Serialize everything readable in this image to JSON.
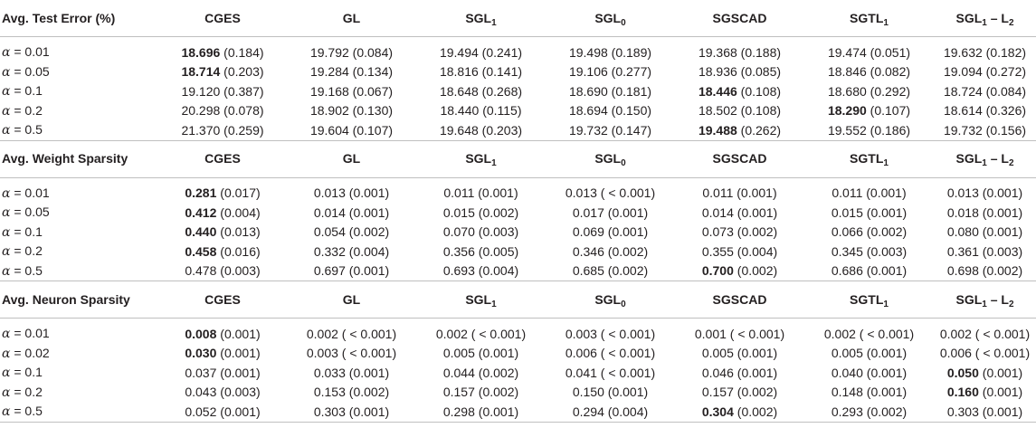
{
  "alpha_symbol": "α",
  "sections": [
    {
      "title": "Avg. Test Error (%)",
      "rows": [
        {
          "alpha": "= 0.01",
          "cells": [
            {
              "v": "18.696",
              "sd": "(0.184)",
              "bold": true
            },
            {
              "v": "19.792",
              "sd": "(0.084)"
            },
            {
              "v": "19.494",
              "sd": "(0.241)"
            },
            {
              "v": "19.498",
              "sd": "(0.189)"
            },
            {
              "v": "19.368",
              "sd": "(0.188)"
            },
            {
              "v": "19.474",
              "sd": "(0.051)"
            },
            {
              "v": "19.632",
              "sd": "(0.182)"
            }
          ]
        },
        {
          "alpha": "= 0.05",
          "cells": [
            {
              "v": "18.714",
              "sd": "(0.203)",
              "bold": true
            },
            {
              "v": "19.284",
              "sd": "(0.134)"
            },
            {
              "v": "18.816",
              "sd": "(0.141)"
            },
            {
              "v": "19.106",
              "sd": "(0.277)"
            },
            {
              "v": "18.936",
              "sd": "(0.085)"
            },
            {
              "v": "18.846",
              "sd": "(0.082)"
            },
            {
              "v": "19.094",
              "sd": "(0.272)"
            }
          ]
        },
        {
          "alpha": "= 0.1",
          "cells": [
            {
              "v": "19.120",
              "sd": "(0.387)"
            },
            {
              "v": "19.168",
              "sd": "(0.067)"
            },
            {
              "v": "18.648",
              "sd": "(0.268)"
            },
            {
              "v": "18.690",
              "sd": "(0.181)"
            },
            {
              "v": "18.446",
              "sd": "(0.108)",
              "bold": true
            },
            {
              "v": "18.680",
              "sd": "(0.292)"
            },
            {
              "v": "18.724",
              "sd": "(0.084)"
            }
          ]
        },
        {
          "alpha": "= 0.2",
          "cells": [
            {
              "v": "20.298",
              "sd": "(0.078)"
            },
            {
              "v": "18.902",
              "sd": "(0.130)"
            },
            {
              "v": "18.440",
              "sd": "(0.115)"
            },
            {
              "v": "18.694",
              "sd": "(0.150)"
            },
            {
              "v": "18.502",
              "sd": "(0.108)"
            },
            {
              "v": "18.290",
              "sd": "(0.107)",
              "bold": true
            },
            {
              "v": "18.614",
              "sd": "(0.326)"
            }
          ]
        },
        {
          "alpha": "= 0.5",
          "cells": [
            {
              "v": "21.370",
              "sd": "(0.259)"
            },
            {
              "v": "19.604",
              "sd": "(0.107)"
            },
            {
              "v": "19.648",
              "sd": "(0.203)"
            },
            {
              "v": "19.732",
              "sd": "(0.147)"
            },
            {
              "v": "19.488",
              "sd": "(0.262)",
              "bold": true
            },
            {
              "v": "19.552",
              "sd": "(0.186)"
            },
            {
              "v": "19.732",
              "sd": "(0.156)"
            }
          ]
        }
      ]
    },
    {
      "title": "Avg. Weight Sparsity",
      "rows": [
        {
          "alpha": "= 0.01",
          "cells": [
            {
              "v": "0.281",
              "sd": "(0.017)",
              "bold": true
            },
            {
              "v": "0.013",
              "sd": "(0.001)"
            },
            {
              "v": "0.011",
              "sd": "(0.001)"
            },
            {
              "v": "0.013",
              "sd": "( < 0.001)"
            },
            {
              "v": "0.011",
              "sd": "(0.001)"
            },
            {
              "v": "0.011",
              "sd": "(0.001)"
            },
            {
              "v": "0.013",
              "sd": "(0.001)"
            }
          ]
        },
        {
          "alpha": "= 0.05",
          "cells": [
            {
              "v": "0.412",
              "sd": "(0.004)",
              "bold": true
            },
            {
              "v": "0.014",
              "sd": "(0.001)"
            },
            {
              "v": "0.015",
              "sd": "(0.002)"
            },
            {
              "v": "0.017",
              "sd": "(0.001)"
            },
            {
              "v": "0.014",
              "sd": "(0.001)"
            },
            {
              "v": "0.015",
              "sd": "(0.001)"
            },
            {
              "v": "0.018",
              "sd": "(0.001)"
            }
          ]
        },
        {
          "alpha": "= 0.1",
          "cells": [
            {
              "v": "0.440",
              "sd": "(0.013)",
              "bold": true
            },
            {
              "v": "0.054",
              "sd": "(0.002)"
            },
            {
              "v": "0.070",
              "sd": "(0.003)"
            },
            {
              "v": "0.069",
              "sd": "(0.001)"
            },
            {
              "v": "0.073",
              "sd": "(0.002)"
            },
            {
              "v": "0.066",
              "sd": "(0.002)"
            },
            {
              "v": "0.080",
              "sd": "(0.001)"
            }
          ]
        },
        {
          "alpha": "= 0.2",
          "cells": [
            {
              "v": "0.458",
              "sd": "(0.016)",
              "bold": true
            },
            {
              "v": "0.332",
              "sd": "(0.004)"
            },
            {
              "v": "0.356",
              "sd": "(0.005)"
            },
            {
              "v": "0.346",
              "sd": "(0.002)"
            },
            {
              "v": "0.355",
              "sd": "(0.004)"
            },
            {
              "v": "0.345",
              "sd": "(0.003)"
            },
            {
              "v": "0.361",
              "sd": "(0.003)"
            }
          ]
        },
        {
          "alpha": "= 0.5",
          "cells": [
            {
              "v": "0.478",
              "sd": "(0.003)"
            },
            {
              "v": "0.697",
              "sd": "(0.001)"
            },
            {
              "v": "0.693",
              "sd": "(0.004)"
            },
            {
              "v": "0.685",
              "sd": "(0.002)"
            },
            {
              "v": "0.700",
              "sd": "(0.002)",
              "bold": true
            },
            {
              "v": "0.686",
              "sd": "(0.001)"
            },
            {
              "v": "0.698",
              "sd": "(0.002)"
            }
          ]
        }
      ]
    },
    {
      "title": "Avg. Neuron Sparsity",
      "rows": [
        {
          "alpha": "= 0.01",
          "cells": [
            {
              "v": "0.008",
              "sd": "(0.001)",
              "bold": true
            },
            {
              "v": "0.002",
              "sd": "( < 0.001)"
            },
            {
              "v": "0.002",
              "sd": "( < 0.001)"
            },
            {
              "v": "0.003",
              "sd": "( < 0.001)"
            },
            {
              "v": "0.001",
              "sd": "( < 0.001)"
            },
            {
              "v": "0.002",
              "sd": "( < 0.001)"
            },
            {
              "v": "0.002",
              "sd": "( < 0.001)"
            }
          ]
        },
        {
          "alpha": "= 0.02",
          "cells": [
            {
              "v": "0.030",
              "sd": "(0.001)",
              "bold": true
            },
            {
              "v": "0.003",
              "sd": "( < 0.001)"
            },
            {
              "v": "0.005",
              "sd": "(0.001)"
            },
            {
              "v": "0.006",
              "sd": "( < 0.001)"
            },
            {
              "v": "0.005",
              "sd": "(0.001)"
            },
            {
              "v": "0.005",
              "sd": "(0.001)"
            },
            {
              "v": "0.006",
              "sd": "( < 0.001)"
            }
          ]
        },
        {
          "alpha": "= 0.1",
          "cells": [
            {
              "v": "0.037",
              "sd": "(0.001)"
            },
            {
              "v": "0.033",
              "sd": "(0.001)"
            },
            {
              "v": "0.044",
              "sd": "(0.002)"
            },
            {
              "v": "0.041",
              "sd": "( < 0.001)"
            },
            {
              "v": "0.046",
              "sd": "(0.001)"
            },
            {
              "v": "0.040",
              "sd": "(0.001)"
            },
            {
              "v": "0.050",
              "sd": "(0.001)",
              "bold": true
            }
          ]
        },
        {
          "alpha": "= 0.2",
          "cells": [
            {
              "v": "0.043",
              "sd": "(0.003)"
            },
            {
              "v": "0.153",
              "sd": "(0.002)"
            },
            {
              "v": "0.157",
              "sd": "(0.002)"
            },
            {
              "v": "0.150",
              "sd": "(0.001)"
            },
            {
              "v": "0.157",
              "sd": "(0.002)"
            },
            {
              "v": "0.148",
              "sd": "(0.001)"
            },
            {
              "v": "0.160",
              "sd": "(0.001)",
              "bold": true
            }
          ]
        },
        {
          "alpha": "= 0.5",
          "cells": [
            {
              "v": "0.052",
              "sd": "(0.001)"
            },
            {
              "v": "0.303",
              "sd": "(0.001)"
            },
            {
              "v": "0.298",
              "sd": "(0.001)"
            },
            {
              "v": "0.294",
              "sd": "(0.004)"
            },
            {
              "v": "0.304",
              "sd": "(0.002)",
              "bold": true
            },
            {
              "v": "0.293",
              "sd": "(0.002)"
            },
            {
              "v": "0.303",
              "sd": "(0.001)"
            }
          ]
        }
      ]
    }
  ],
  "methods": [
    {
      "base": "CGES",
      "sub": "",
      "suffix": "",
      "sub2": ""
    },
    {
      "base": "GL",
      "sub": "",
      "suffix": "",
      "sub2": ""
    },
    {
      "base": "SGL",
      "sub": "1",
      "suffix": "",
      "sub2": ""
    },
    {
      "base": "SGL",
      "sub": "0",
      "suffix": "",
      "sub2": ""
    },
    {
      "base": "SGSCAD",
      "sub": "",
      "suffix": "",
      "sub2": ""
    },
    {
      "base": "SGTL",
      "sub": "1",
      "suffix": "",
      "sub2": ""
    },
    {
      "base": "SGL",
      "sub": "1",
      "suffix": " – L",
      "sub2": "2"
    }
  ]
}
